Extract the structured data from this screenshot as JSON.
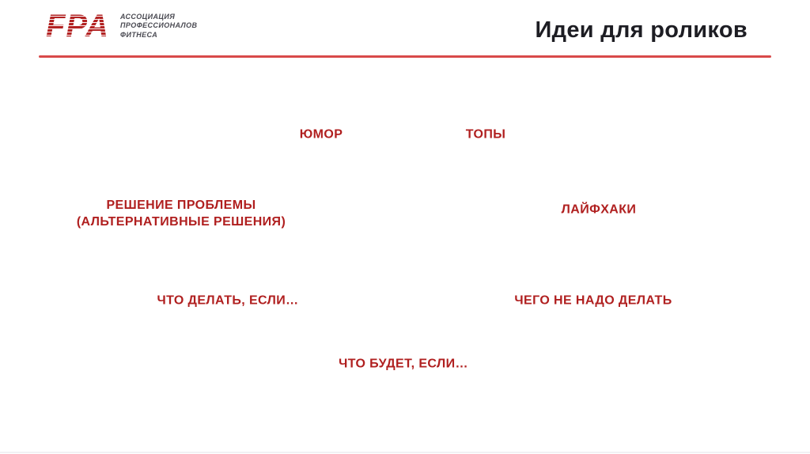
{
  "header": {
    "title": "Идеи для роликов"
  },
  "logo": {
    "abbr": "FPA",
    "tagline": "АССОЦИАЦИЯ\nПРОФЕССИОНАЛОВ\nФИТНЕСА"
  },
  "colors": {
    "idea_text_red": "#B01F1F",
    "divider_red": "#D84A4A",
    "title_dark": "#1D1D23",
    "logo_red": "#B22222",
    "logo_gray": "#4A4A52"
  },
  "ideas": {
    "humor": {
      "text": "ЮМОР"
    },
    "tops": {
      "text": "ТОПЫ"
    },
    "problem_solving": {
      "line1": "РЕШЕНИЕ ПРОБЛЕМЫ",
      "line2": "(АЛЬТЕРНАТИВНЫЕ РЕШЕНИЯ)"
    },
    "lifehacks": {
      "text": "ЛАЙФХАКИ"
    },
    "what_to_do_if": {
      "text": "ЧТО ДЕЛАТЬ, ЕСЛИ…"
    },
    "what_not_to_do": {
      "text": "ЧЕГО НЕ НАДО ДЕЛАТЬ"
    },
    "what_happens_if": {
      "text": "ЧТО БУДЕТ, ЕСЛИ…"
    }
  }
}
